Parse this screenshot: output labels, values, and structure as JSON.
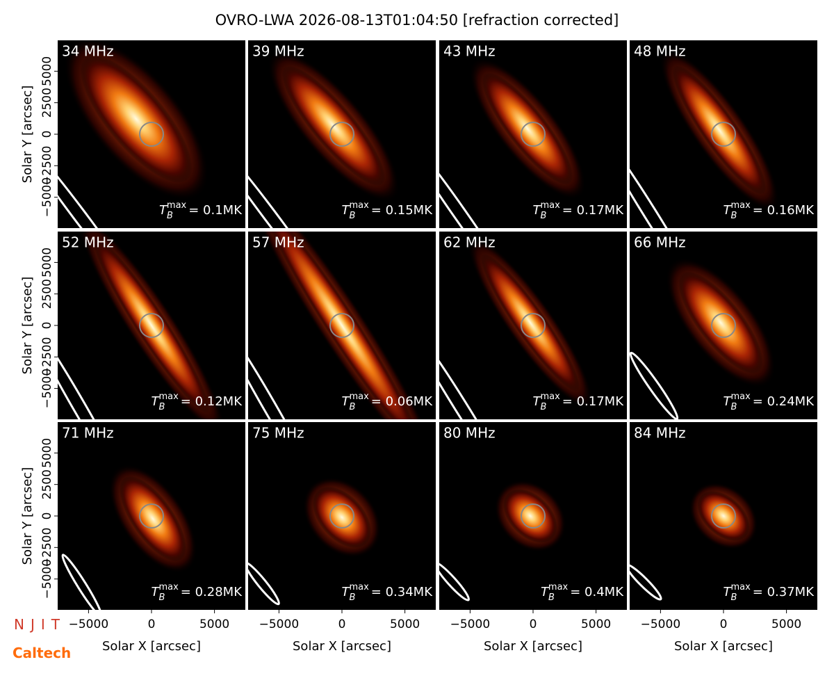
{
  "title": "OVRO-LWA 2026-08-13T01:04:50 [refraction corrected]",
  "annotation_symbol": {
    "base": "T",
    "subscript": "B",
    "superscript": "max"
  },
  "logos": [
    "NJIT",
    "Caltech"
  ],
  "chart_data": [
    {
      "type": "heatmap",
      "title": "34 MHz",
      "annotation": "= 0.1MK",
      "xlim": [
        -7450,
        7450
      ],
      "ylim": [
        -7450,
        7450
      ],
      "ylabel": "Solar Y [arcsec]",
      "yticks": [
        {
          "value": -5000,
          "label": "−5000"
        },
        {
          "value": -2500,
          "label": "−2500"
        },
        0,
        2500,
        5000
      ]
    },
    {
      "type": "heatmap",
      "title": "39 MHz",
      "annotation": "= 0.15MK",
      "xlim": [
        -7450,
        7450
      ],
      "ylim": [
        -7450,
        7450
      ]
    },
    {
      "type": "heatmap",
      "title": "43 MHz",
      "annotation": "= 0.17MK",
      "xlim": [
        -7450,
        7450
      ],
      "ylim": [
        -7450,
        7450
      ]
    },
    {
      "type": "heatmap",
      "title": "48 MHz",
      "annotation": "= 0.16MK",
      "xlim": [
        -7450,
        7450
      ],
      "ylim": [
        -7450,
        7450
      ]
    },
    {
      "type": "heatmap",
      "title": "52 MHz",
      "annotation": "= 0.12MK",
      "xlim": [
        -7450,
        7450
      ],
      "ylim": [
        -7450,
        7450
      ],
      "ylabel": "Solar Y [arcsec]",
      "yticks": [
        {
          "value": -5000,
          "label": "−5000"
        },
        {
          "value": -2500,
          "label": "−2500"
        },
        0,
        2500,
        5000
      ]
    },
    {
      "type": "heatmap",
      "title": "57 MHz",
      "annotation": "= 0.06MK",
      "xlim": [
        -7450,
        7450
      ],
      "ylim": [
        -7450,
        7450
      ]
    },
    {
      "type": "heatmap",
      "title": "62 MHz",
      "annotation": "= 0.17MK",
      "xlim": [
        -7450,
        7450
      ],
      "ylim": [
        -7450,
        7450
      ]
    },
    {
      "type": "heatmap",
      "title": "66 MHz",
      "annotation": "= 0.24MK",
      "xlim": [
        -7450,
        7450
      ],
      "ylim": [
        -7450,
        7450
      ]
    },
    {
      "type": "heatmap",
      "title": "71 MHz",
      "annotation": "= 0.28MK",
      "xlim": [
        -7450,
        7450
      ],
      "ylim": [
        -7450,
        7450
      ],
      "ylabel": "Solar Y [arcsec]",
      "yticks": [
        {
          "value": -5000,
          "label": "−5000"
        },
        {
          "value": -2500,
          "label": "−2500"
        },
        0,
        2500,
        5000
      ],
      "xlabel": "Solar X [arcsec]",
      "xticks": [
        {
          "value": -5000,
          "label": "−5000"
        },
        0,
        5000
      ]
    },
    {
      "type": "heatmap",
      "title": "75 MHz",
      "annotation": "= 0.34MK",
      "xlim": [
        -7450,
        7450
      ],
      "ylim": [
        -7450,
        7450
      ],
      "xlabel": "Solar X [arcsec]",
      "xticks": [
        {
          "value": -5000,
          "label": "−5000"
        },
        0,
        5000
      ]
    },
    {
      "type": "heatmap",
      "title": "80 MHz",
      "annotation": "= 0.4MK",
      "xlim": [
        -7450,
        7450
      ],
      "ylim": [
        -7450,
        7450
      ],
      "xlabel": "Solar X [arcsec]",
      "xticks": [
        {
          "value": -5000,
          "label": "−5000"
        },
        0,
        5000
      ]
    },
    {
      "type": "heatmap",
      "title": "84 MHz",
      "annotation": "= 0.37MK",
      "xlim": [
        -7450,
        7450
      ],
      "ylim": [
        -7450,
        7450
      ],
      "xlabel": "Solar X [arcsec]",
      "xticks": [
        {
          "value": -5000,
          "label": "−5000"
        },
        0,
        5000
      ]
    }
  ]
}
